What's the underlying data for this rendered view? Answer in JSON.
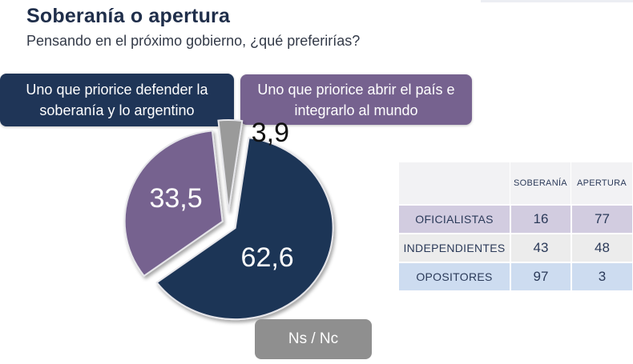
{
  "header": {
    "title": "Soberanía o apertura",
    "subtitle": "Pensando en el próximo gobierno, ¿qué preferirías?"
  },
  "options": {
    "soberania_label": "Uno que priorice defender la soberanía y lo argentino",
    "apertura_label": "Uno que priorice abrir el país e integrarlo al mundo",
    "nsnc_label": "Ns / Nc"
  },
  "colors": {
    "soberania": "#1f3557",
    "apertura": "#76628f",
    "nsnc": "#8f8f8f"
  },
  "chart_data": [
    {
      "type": "pie",
      "slices": [
        {
          "name": "Uno que priorice defender la soberanía y lo argentino",
          "value": 62.6,
          "label": "62,6",
          "color": "#1f3557"
        },
        {
          "name": "Uno que priorice abrir el país e integrarlo al mundo",
          "value": 33.5,
          "label": "33,5",
          "color": "#76628f"
        },
        {
          "name": "Ns / Nc",
          "value": 3.9,
          "label": "3,9",
          "color": "#9a9a9a"
        }
      ],
      "exploded": true,
      "legend": "boxes above and below the pie"
    },
    {
      "type": "table",
      "columns": [
        "",
        "SOBERANÍA",
        "APERTURA"
      ],
      "rows": [
        {
          "group": "OFICIALISTAS",
          "soberania": 16,
          "apertura": 77
        },
        {
          "group": "INDEPENDIENTES",
          "soberania": 43,
          "apertura": 48
        },
        {
          "group": "OPOSITORES",
          "soberania": 97,
          "apertura": 3
        }
      ]
    }
  ],
  "table": {
    "col_soberania": "SOBERANÍA",
    "col_apertura": "APERTURA",
    "rows": [
      {
        "group": "OFICIALISTAS",
        "soberania": "16",
        "apertura": "77"
      },
      {
        "group": "INDEPENDIENTES",
        "soberania": "43",
        "apertura": "48"
      },
      {
        "group": "OPOSITORES",
        "soberania": "97",
        "apertura": "3"
      }
    ]
  }
}
